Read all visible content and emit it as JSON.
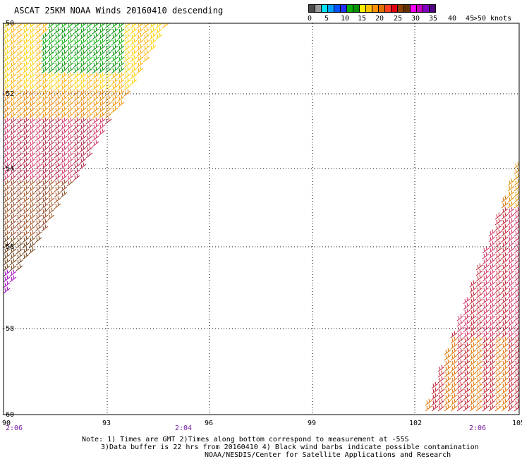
{
  "title": "ASCAT 25KM NOAA Winds 20160410 descending",
  "legend": {
    "segments": [
      {
        "color": "#4a4a4a"
      },
      {
        "color": "#9a9a9a"
      },
      {
        "color": "#00e5ff"
      },
      {
        "color": "#00a0ff"
      },
      {
        "color": "#0050ff"
      },
      {
        "color": "#2030ff"
      },
      {
        "color": "#00b000"
      },
      {
        "color": "#009000"
      },
      {
        "color": "#ffee00"
      },
      {
        "color": "#ffc000"
      },
      {
        "color": "#ff9000"
      },
      {
        "color": "#e07000"
      },
      {
        "color": "#ff4020"
      },
      {
        "color": "#e00010"
      },
      {
        "color": "#8a4000"
      },
      {
        "color": "#603000"
      },
      {
        "color": "#ff00ff"
      },
      {
        "color": "#c000c0"
      },
      {
        "color": "#8000c0"
      },
      {
        "color": "#500080"
      }
    ],
    "ticks": [
      "0",
      "5",
      "10",
      "15",
      "20",
      "25",
      "30",
      "35",
      "40",
      "45",
      ">50 knots"
    ]
  },
  "lat_labels": [
    "-50",
    "-52",
    "-54",
    "-56",
    "-58",
    "-60"
  ],
  "lon_labels": [
    "90",
    "93",
    "96",
    "99",
    "102",
    "105"
  ],
  "time_labels": [
    "2:06",
    "2:04",
    "2:06"
  ],
  "notes": [
    "Note: 1) Times are GMT 2)Times along bottom correspond to measurement at -55S",
    "3)Data buffer is 22 hrs from 20160410 4) Black wind barbs indicate possible contamination",
    "NOAA/NESDIS/Center for Satellite Applications and Research"
  ]
}
